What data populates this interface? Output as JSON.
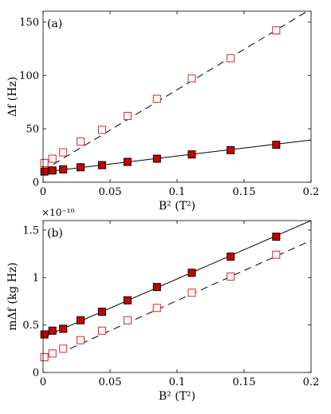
{
  "chart_data": [
    {
      "type": "scatter",
      "panel_label": "(a)",
      "xlabel": "B² (T²)",
      "ylabel": "Δf (Hz)",
      "xlim": [
        0,
        0.2
      ],
      "ylim": [
        0,
        160
      ],
      "xticks": [
        0,
        0.05,
        0.1,
        0.15,
        0.2
      ],
      "xtick_labels": [
        "0",
        "0.05",
        "0.1",
        "0.15",
        "0.2"
      ],
      "yticks": [
        0,
        50,
        100,
        150
      ],
      "ytick_labels": [
        "0",
        "50",
        "100",
        "150"
      ],
      "grid": false,
      "series": [
        {
          "marker": "filled-square",
          "color": "#cc0000",
          "x": [
            0.001,
            0.007,
            0.015,
            0.028,
            0.044,
            0.063,
            0.085,
            0.111,
            0.14,
            0.174
          ],
          "y": [
            10,
            11,
            12,
            14,
            16,
            19,
            22,
            26,
            30,
            35
          ],
          "fit": {
            "style": "solid",
            "x": [
              0,
              0.2
            ],
            "y": [
              9.5,
              39.5
            ]
          }
        },
        {
          "marker": "open-square",
          "color": "#dd2222",
          "x": [
            0.001,
            0.007,
            0.015,
            0.028,
            0.044,
            0.063,
            0.085,
            0.111,
            0.14,
            0.174
          ],
          "y": [
            18,
            22,
            28,
            38,
            49,
            62,
            78,
            97,
            116,
            142
          ],
          "fit": {
            "style": "dashed",
            "x": [
              0,
              0.2
            ],
            "y": [
              11,
              162
            ]
          }
        }
      ]
    },
    {
      "type": "scatter",
      "panel_label": "(b)",
      "exponent_label": "×10⁻¹⁰",
      "xlabel": "B² (T²)",
      "ylabel": "mΔf (kg Hz)",
      "xlim": [
        0,
        0.2
      ],
      "ylim": [
        0,
        1.6
      ],
      "xticks": [
        0,
        0.05,
        0.1,
        0.15,
        0.2
      ],
      "xtick_labels": [
        "0",
        "0.05",
        "0.1",
        "0.15",
        "0.2"
      ],
      "yticks": [
        0,
        0.5,
        1,
        1.5
      ],
      "ytick_labels": [
        "0",
        "0.5",
        "1",
        "1.5"
      ],
      "grid": false,
      "series": [
        {
          "marker": "filled-square",
          "color": "#cc0000",
          "x": [
            0.001,
            0.007,
            0.015,
            0.028,
            0.044,
            0.063,
            0.085,
            0.111,
            0.14,
            0.174
          ],
          "y": [
            0.4,
            0.44,
            0.46,
            0.55,
            0.64,
            0.76,
            0.9,
            1.05,
            1.22,
            1.43
          ],
          "fit": {
            "style": "solid",
            "x": [
              0,
              0.2
            ],
            "y": [
              0.37,
              1.6
            ]
          }
        },
        {
          "marker": "open-square",
          "color": "#dd2222",
          "x": [
            0.001,
            0.007,
            0.015,
            0.028,
            0.044,
            0.063,
            0.085,
            0.111,
            0.14,
            0.174
          ],
          "y": [
            0.16,
            0.2,
            0.25,
            0.34,
            0.44,
            0.55,
            0.68,
            0.84,
            1.01,
            1.24
          ],
          "fit": {
            "style": "dashed",
            "x": [
              0.02,
              0.2
            ],
            "y": [
              0.25,
              1.39
            ]
          }
        }
      ]
    }
  ]
}
